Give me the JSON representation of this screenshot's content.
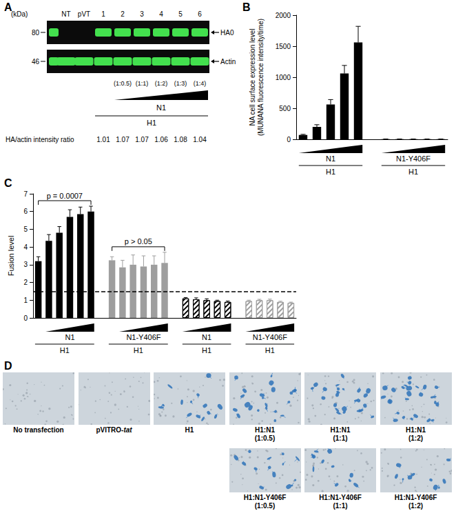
{
  "panel_letters": [
    "A",
    "B",
    "C",
    "D"
  ],
  "blot": {
    "mw_unit": "(kDa)",
    "lanes": [
      null,
      "NT",
      "pVT",
      "1",
      "2",
      "3",
      "4",
      "5",
      "6"
    ],
    "bands": [
      {
        "name": "HA0",
        "mw": 80,
        "present": [
          true,
          false,
          false,
          true,
          true,
          true,
          true,
          true,
          true
        ]
      },
      {
        "name": "Actin",
        "mw": 46,
        "present": [
          true,
          true,
          true,
          true,
          true,
          true,
          true,
          true,
          true
        ]
      }
    ],
    "ratios": [
      "(1:0.5)",
      "(1:1)",
      "(1:2)",
      "(1:3)",
      "(1:4)"
    ],
    "ramp_label": "N1",
    "base_label": "H1",
    "intensity_title": "HA/actin intensity ratio",
    "intensity_ratios": [
      1.01,
      1.07,
      1.07,
      1.06,
      1.08,
      1.04
    ]
  },
  "chart_data": [
    {
      "type": "bar",
      "ylabel": "NA cell surface expression level\n(MUNANA fluorescence intensity/time)",
      "ylim": [
        0,
        2000
      ],
      "yticks": [
        0,
        500,
        1000,
        1500,
        2000
      ],
      "grid": false,
      "tick_labels": "y",
      "series": [
        {
          "color": "#000000",
          "values": [
            70,
            200,
            560,
            1060,
            1560
          ],
          "errors": [
            10,
            35,
            80,
            130,
            260
          ],
          "group_label": "N1",
          "group_base": "H1"
        },
        {
          "color": "#000000",
          "values": [
            3,
            3,
            3,
            3,
            3
          ],
          "errors": [
            2,
            2,
            2,
            2,
            2
          ],
          "group_label": "N1-Y406F",
          "group_base": "H1"
        }
      ]
    },
    {
      "type": "bar",
      "ylabel": "Fusion level",
      "ylim": [
        0,
        7
      ],
      "yticks": [
        0,
        1,
        2,
        3,
        4,
        5,
        6,
        7
      ],
      "threshold": 1.5,
      "grid": false,
      "tick_labels": "y",
      "series": [
        {
          "color": "#000000",
          "marker": "solid",
          "values": [
            3.2,
            4.35,
            4.8,
            5.7,
            5.85,
            6.0
          ],
          "errors": [
            0.25,
            0.35,
            0.35,
            0.4,
            0.4,
            0.3
          ],
          "group_label": "N1",
          "group_base": "H1",
          "annotation": "p = 0.0007"
        },
        {
          "color": "#9e9e9e",
          "marker": "solid",
          "values": [
            3.25,
            2.85,
            3.0,
            2.9,
            3.0,
            3.1
          ],
          "errors": [
            0.2,
            0.4,
            0.55,
            0.6,
            0.5,
            0.6
          ],
          "group_label": "N1-Y406F",
          "group_base": "H1",
          "annotation": "p > 0.05"
        },
        {
          "color": "#000000",
          "marker": "hatched",
          "values": [
            1.1,
            1.05,
            1.0,
            0.95,
            0.9
          ],
          "errors": [
            0.05,
            0.08,
            0.08,
            0.05,
            0.05
          ],
          "group_label": "N1",
          "group_base": "H1"
        },
        {
          "color": "#9e9e9e",
          "marker": "hatched",
          "values": [
            0.95,
            1.0,
            1.0,
            0.9,
            0.85
          ],
          "errors": [
            0.05,
            0.05,
            0.06,
            0.04,
            0.04
          ],
          "group_label": "N1-Y406F",
          "group_base": "H1"
        }
      ]
    }
  ],
  "micrographs": {
    "images": [
      {
        "label": "No transfection",
        "cells": 0
      },
      {
        "label": "pVITRO-tat",
        "italic": "tat",
        "cells": 0
      },
      {
        "label": "H1",
        "cells": 14
      },
      {
        "label": "H1:N1\n(1:0.5)",
        "cells": 22
      },
      {
        "label": "H1:N1\n(1:1)",
        "cells": 24
      },
      {
        "label": "H1:N1\n(1:2)",
        "cells": 26
      },
      {
        "label": "H1:N1-Y406F\n(1:0.5)",
        "cells": 14
      },
      {
        "label": "H1:N1-Y406F\n(1:1)",
        "cells": 11
      },
      {
        "label": "H1:N1-Y406F\n(1:2)",
        "cells": 10
      }
    ]
  }
}
